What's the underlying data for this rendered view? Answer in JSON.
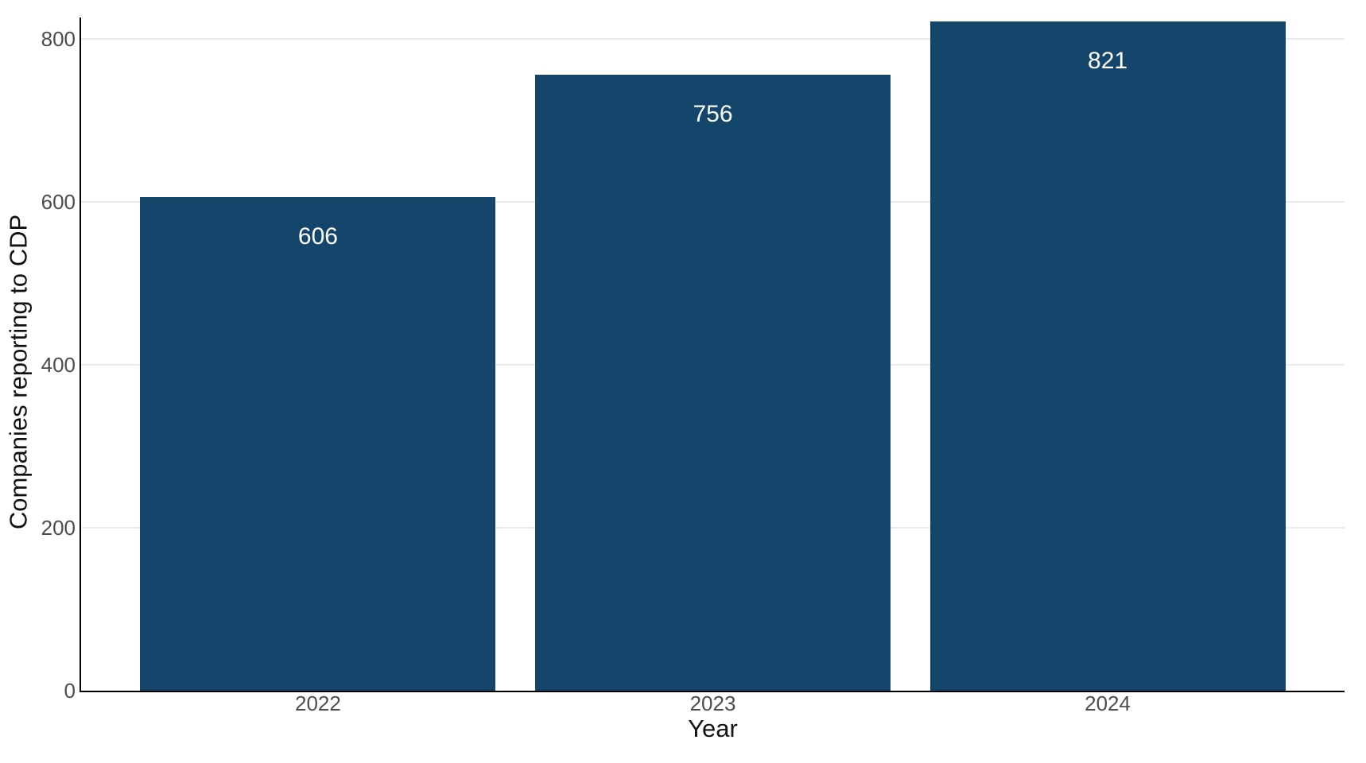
{
  "chart_data": {
    "type": "bar",
    "title": "",
    "categories": [
      "2022",
      "2023",
      "2024"
    ],
    "values": [
      606,
      756,
      821
    ],
    "bar_labels": [
      "606",
      "756",
      "821"
    ],
    "xlabel": "Year",
    "ylabel": "Companies reporting to CDP",
    "ylim": [
      0,
      826
    ],
    "yticks": [
      0,
      200,
      400,
      600,
      800
    ],
    "grid": "major-horizontal-only",
    "legend": "none",
    "colors": {
      "bar": "#14456B",
      "bar_label_text": "#ffffff",
      "axis_text": "#4d4d4d",
      "axis_title_text": "#111111",
      "axis_line": "#000000",
      "gridline": "#ebebeb",
      "background": "#ffffff"
    }
  }
}
